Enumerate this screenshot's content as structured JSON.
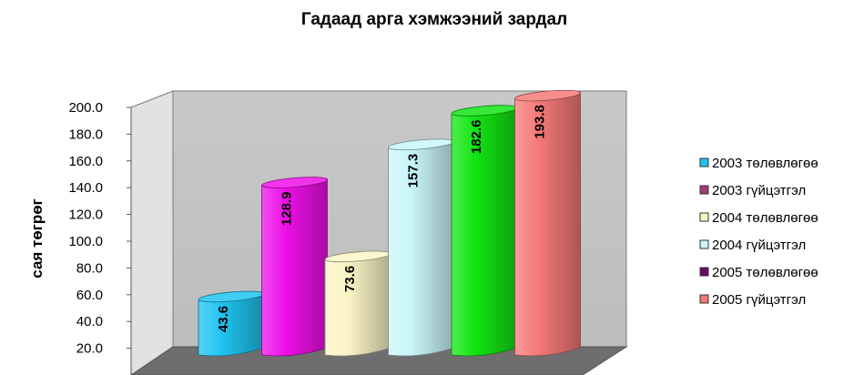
{
  "chart_data": {
    "type": "bar",
    "title": "Гадаад арга хэмжээний зардал",
    "xlabel": "",
    "ylabel": "сая төгрөг",
    "ylim": [
      0,
      200
    ],
    "yticks": [
      "20.0",
      "40.0",
      "60.0",
      "80.0",
      "100.0",
      "120.0",
      "140.0",
      "160.0",
      "180.0",
      "200.0"
    ],
    "grid": false,
    "legend_position": "right",
    "series": [
      {
        "name": "2003 төлөвлөгөө",
        "value": 43.6,
        "label": "43.6",
        "color": "#1fc4f0"
      },
      {
        "name": "2003 гүйцэтгэл",
        "value": 128.9,
        "label": "128.9",
        "color": "#ee10e8"
      },
      {
        "name": "2004 төлөвлөгөө",
        "value": 73.6,
        "label": "73.6",
        "color": "#fbf5c6"
      },
      {
        "name": "2004 гүйцэтгэл",
        "value": 157.3,
        "label": "157.3",
        "color": "#c9f6f8"
      },
      {
        "name": "2005 төлөвлөгөө",
        "value": 182.6,
        "label": "182.6",
        "color": "#13e513"
      },
      {
        "name": "2005 гүйцэтгэл",
        "value": 193.8,
        "label": "193.8",
        "color": "#f57a78"
      }
    ],
    "legend_swatches": [
      "#1fc4f0",
      "#a03a78",
      "#fbf5c6",
      "#c9f6f8",
      "#6a0a68",
      "#f57a78"
    ]
  }
}
